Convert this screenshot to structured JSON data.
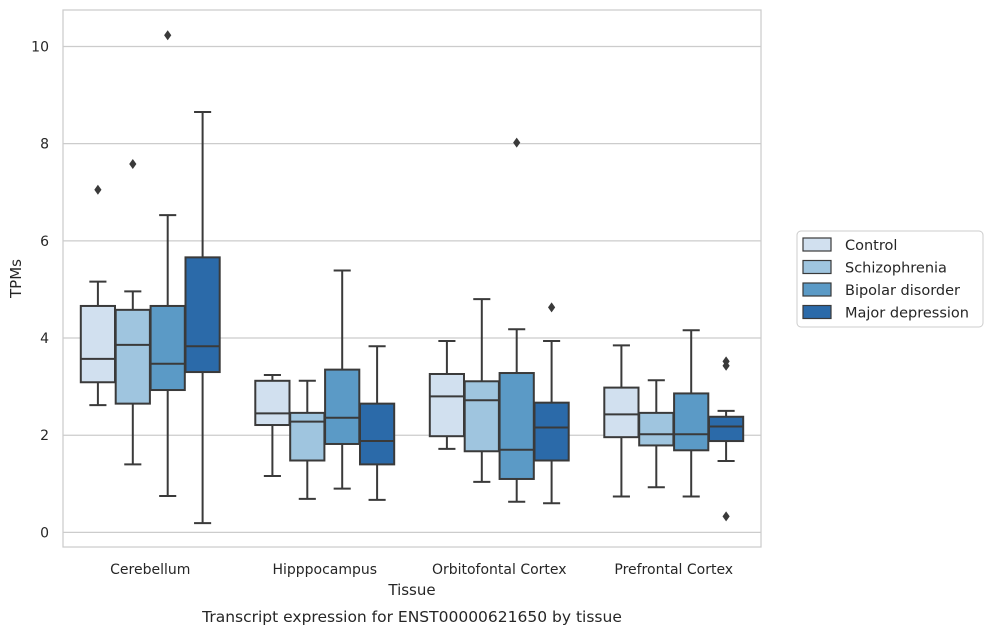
{
  "chart_data": {
    "type": "box",
    "xlabel": "Tissue",
    "ylabel": "TPMs",
    "caption": "Transcript expression for ENST00000621650 by tissue",
    "ylim": [
      -0.3,
      10.75
    ],
    "yticks": [
      0,
      2,
      4,
      6,
      8,
      10
    ],
    "grid": "horizontal",
    "legend_position": "right",
    "categories": [
      "Cerebellum",
      "Hipppocampus",
      "Orbitofontal Cortex",
      "Prefrontal Cortex"
    ],
    "series": [
      {
        "name": "Control",
        "color": "#d1e0ef",
        "boxes": [
          {
            "whislo": 2.62,
            "q1": 3.09,
            "med": 3.57,
            "q3": 4.66,
            "whishi": 5.16,
            "fliers": [
              7.05
            ]
          },
          {
            "whislo": 1.16,
            "q1": 2.21,
            "med": 2.45,
            "q3": 3.12,
            "whishi": 3.24,
            "fliers": []
          },
          {
            "whislo": 1.72,
            "q1": 1.98,
            "med": 2.8,
            "q3": 3.26,
            "whishi": 3.94,
            "fliers": []
          },
          {
            "whislo": 0.74,
            "q1": 1.96,
            "med": 2.43,
            "q3": 2.98,
            "whishi": 3.85,
            "fliers": []
          }
        ]
      },
      {
        "name": "Schizophrenia",
        "color": "#9fc5df",
        "boxes": [
          {
            "whislo": 1.4,
            "q1": 2.65,
            "med": 3.86,
            "q3": 4.58,
            "whishi": 4.96,
            "fliers": [
              7.58
            ]
          },
          {
            "whislo": 0.69,
            "q1": 1.48,
            "med": 2.28,
            "q3": 2.46,
            "whishi": 3.12,
            "fliers": []
          },
          {
            "whislo": 1.04,
            "q1": 1.67,
            "med": 2.72,
            "q3": 3.11,
            "whishi": 4.8,
            "fliers": []
          },
          {
            "whislo": 0.93,
            "q1": 1.79,
            "med": 2.02,
            "q3": 2.46,
            "whishi": 3.13,
            "fliers": []
          }
        ]
      },
      {
        "name": "Bipolar disorder",
        "color": "#5b9ac6",
        "boxes": [
          {
            "whislo": 0.75,
            "q1": 2.93,
            "med": 3.47,
            "q3": 4.66,
            "whishi": 6.53,
            "fliers": [
              10.23
            ]
          },
          {
            "whislo": 0.9,
            "q1": 1.82,
            "med": 2.36,
            "q3": 3.35,
            "whishi": 5.39,
            "fliers": []
          },
          {
            "whislo": 0.63,
            "q1": 1.1,
            "med": 1.7,
            "q3": 3.28,
            "whishi": 4.18,
            "fliers": [
              8.02
            ]
          },
          {
            "whislo": 0.74,
            "q1": 1.69,
            "med": 2.02,
            "q3": 2.86,
            "whishi": 4.16,
            "fliers": []
          }
        ]
      },
      {
        "name": "Major depression",
        "color": "#2b6aa9",
        "boxes": [
          {
            "whislo": 0.19,
            "q1": 3.3,
            "med": 3.83,
            "q3": 5.66,
            "whishi": 8.65,
            "fliers": []
          },
          {
            "whislo": 0.67,
            "q1": 1.4,
            "med": 1.88,
            "q3": 2.65,
            "whishi": 3.83,
            "fliers": []
          },
          {
            "whislo": 0.6,
            "q1": 1.48,
            "med": 2.16,
            "q3": 2.67,
            "whishi": 3.94,
            "fliers": [
              4.63
            ]
          },
          {
            "whislo": 1.47,
            "q1": 1.88,
            "med": 2.18,
            "q3": 2.38,
            "whishi": 2.5,
            "fliers": [
              3.52,
              3.43,
              0.33
            ]
          }
        ]
      }
    ]
  }
}
